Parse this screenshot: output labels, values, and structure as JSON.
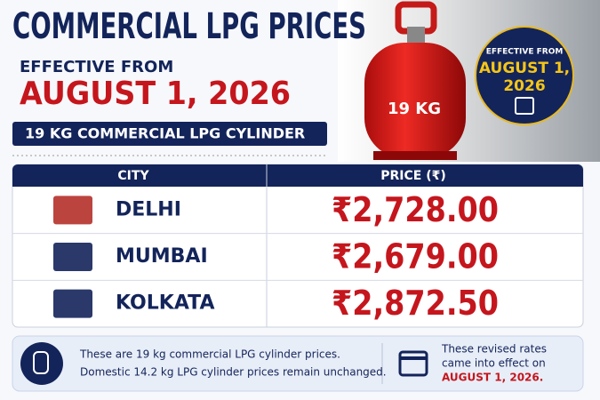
{
  "header": {
    "title": "COMMERCIAL LPG PRICES",
    "effective_label": "EFFECTIVE FROM",
    "date": "AUGUST 1, 2026",
    "subtitle": "19 KG COMMERCIAL LPG CYLINDER",
    "cylinder_label": "19 KG"
  },
  "badge": {
    "label": "EFFECTIVE FROM",
    "date_line1": "AUGUST 1,",
    "date_line2": "2026"
  },
  "table": {
    "headers": [
      "CITY",
      "PRICE (₹)"
    ],
    "rows": [
      [
        "DELHI",
        "₹2,728.00"
      ],
      [
        "MUMBAI",
        "₹2,679.00"
      ],
      [
        "KOLKATA",
        "₹2,872.50"
      ]
    ]
  },
  "footer": {
    "note": [
      "These are 19 kg commercial LPG cylinder prices.",
      "Domestic 14.2 kg LPG cylinder prices remain unchanged."
    ],
    "effect": [
      "These revised rates",
      "came into effect on",
      "AUGUST 1, 2026."
    ]
  }
}
